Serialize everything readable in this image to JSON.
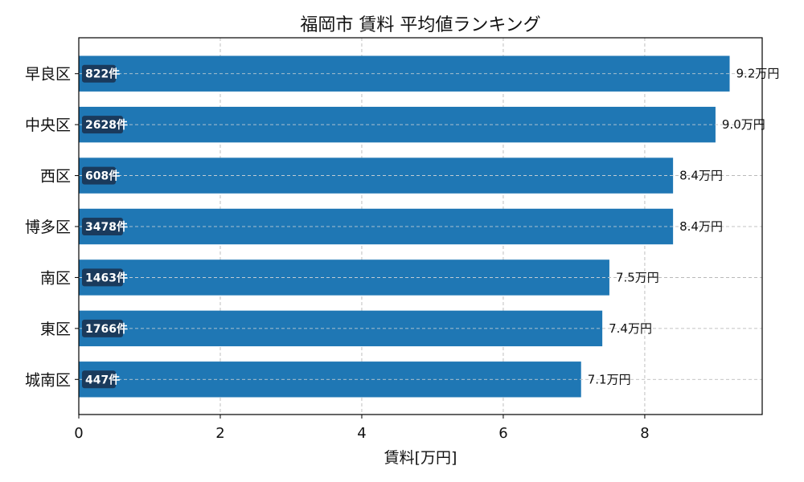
{
  "chart_data": {
    "type": "bar",
    "orientation": "horizontal",
    "title": "福岡市 賃料 平均値ランキング",
    "xlabel": "賃料[万円]",
    "ylabel": "",
    "xlim": [
      0,
      9.66
    ],
    "xticks": [
      0,
      2,
      4,
      6,
      8
    ],
    "grid": true,
    "bar_color": "#1f77b4",
    "count_badge_color": "#1a3a5c",
    "categories": [
      "早良区",
      "中央区",
      "西区",
      "博多区",
      "南区",
      "東区",
      "城南区"
    ],
    "values": [
      9.2,
      9.0,
      8.4,
      8.4,
      7.5,
      7.4,
      7.1
    ],
    "value_labels": [
      "9.2万円",
      "9.0万円",
      "8.4万円",
      "8.4万円",
      "7.5万円",
      "7.4万円",
      "7.1万円"
    ],
    "counts": [
      "822件",
      "2628件",
      "608件",
      "3478件",
      "1463件",
      "1766件",
      "447件"
    ]
  }
}
